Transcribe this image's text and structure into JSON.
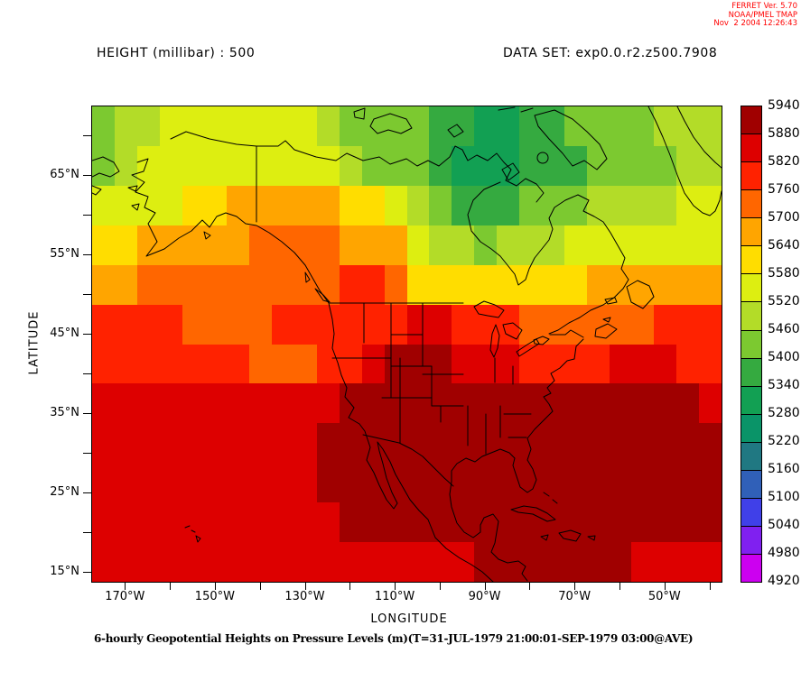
{
  "ferret_header": {
    "line1": "FERRET Ver. 5.70",
    "line2": "NOAA/PMEL TMAP",
    "line3": "Nov  2 2004 12:26:43",
    "color": "#FF0000"
  },
  "titles": {
    "variable": "HEIGHT (millibar) : 500",
    "dataset": "DATA SET: exp0.0.r2.z500.7908"
  },
  "axes": {
    "x_label": "LONGITUDE",
    "y_label": "LATITUDE",
    "x_major_ticks": [
      "170°W",
      "150°W",
      "130°W",
      "110°W",
      "90°W",
      "70°W",
      "50°W"
    ],
    "y_major_ticks": [
      "65°N",
      "55°N",
      "45°N",
      "35°N",
      "25°N",
      "15°N"
    ]
  },
  "caption": "6-hourly Geopotential Heights on Pressure Levels (m)(T=31-JUL-1979 21:00:01-SEP-1979 03:00@AVE)",
  "colorbar": {
    "labels": [
      "5940",
      "5880",
      "5820",
      "5760",
      "5700",
      "5640",
      "5580",
      "5520",
      "5460",
      "5400",
      "5340",
      "5280",
      "5220",
      "5160",
      "5100",
      "5040",
      "4980",
      "4920"
    ]
  },
  "chart_data": {
    "type": "heatmap",
    "title": "HEIGHT (millibar) : 500",
    "units": "m",
    "xlabel": "LONGITUDE",
    "ylabel": "LATITUDE",
    "x_axis_range_deg_west": [
      177.5,
      37.5
    ],
    "y_axis_range_deg_north": [
      13.8,
      73.8
    ],
    "x_ticks_deg_west": [
      170,
      160,
      150,
      140,
      130,
      120,
      110,
      100,
      90,
      80,
      70,
      60,
      50,
      40
    ],
    "x_labeled_ticks": [
      170,
      150,
      130,
      110,
      90,
      70,
      50
    ],
    "y_ticks_deg_north": [
      70,
      65,
      60,
      55,
      50,
      45,
      40,
      35,
      30,
      25,
      20,
      15
    ],
    "y_labeled_ticks": [
      65,
      55,
      45,
      35,
      25,
      15
    ],
    "levels_min": 4920,
    "levels_max": 5940,
    "level_step": 60,
    "palette": [
      {
        "min": 4920,
        "color": "#CC00F0"
      },
      {
        "min": 4980,
        "color": "#8020F0"
      },
      {
        "min": 5040,
        "color": "#4040E8"
      },
      {
        "min": 5100,
        "color": "#3060B8"
      },
      {
        "min": 5160,
        "color": "#207882"
      },
      {
        "min": 5220,
        "color": "#0A9468"
      },
      {
        "min": 5280,
        "color": "#12A053"
      },
      {
        "min": 5340,
        "color": "#35AA40"
      },
      {
        "min": 5400,
        "color": "#7CC930"
      },
      {
        "min": 5460,
        "color": "#B3DC28"
      },
      {
        "min": 5520,
        "color": "#DDEE11"
      },
      {
        "min": 5580,
        "color": "#FFDD00"
      },
      {
        "min": 5640,
        "color": "#FFA500"
      },
      {
        "min": 5700,
        "color": "#FF6600"
      },
      {
        "min": 5760,
        "color": "#FF2200"
      },
      {
        "min": 5820,
        "color": "#DD0000"
      },
      {
        "min": 5880,
        "color": "#A00000"
      }
    ],
    "grid_encoding": "each char is a base-17 digit (0-9,A-G) indexing palette; rows span 72.5N to 12.5N, cols span 177.5W to 37.5W in 5 degree cells",
    "grid_cols": 28,
    "grid_rows": 12,
    "grid_rows_top_to_bottom": [
      "899AAAAAAA988887766778888999",
      "89AAAAAAAAA98887666777888899",
      "AAAABBCCCCCBBA987778889999AA",
      "BBCCCCCDDDDCCCA998999AAAAAAA",
      "CCDDDDDDDDDEEDBBBBBBBBCCCCCC",
      "EEEEDDDDEEEEEEFFEEEDDDDDDEEE",
      "EEEEEEEDDDEEFGGGFFFEEEEFFFEE",
      "FFFFFFFFFFFGGGGGGGGGGGGGGGGF",
      "FFFFFFFFFFGGGGGGGGGGGGGGGGGG",
      "FFFFFFFFFFGGGGGGGGGGGGGGGGGG",
      "FFFFFFFFFFFGGGGGGGGGGGGGGGGG",
      "FFFFFFFFFFFFFFFFFGGGGGGGFFFF"
    ]
  }
}
